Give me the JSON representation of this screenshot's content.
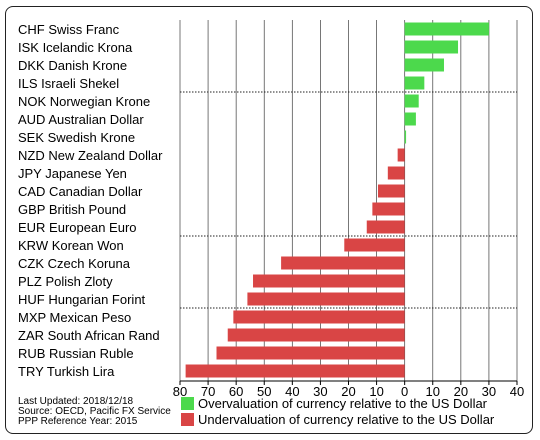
{
  "chart_data": {
    "type": "bar",
    "orientation": "horizontal",
    "categories": [
      "CHF Swiss Franc",
      "ISK Icelandic Krona",
      "DKK Danish Krone",
      "ILS Israeli Shekel",
      "NOK Norwegian Krone",
      "AUD Australian Dollar",
      "SEK Swedish Krone",
      "NZD New Zealand Dollar",
      "JPY Japanese Yen",
      "CAD Canadian Dollar",
      "GBP British Pound",
      "EUR European Euro",
      "KRW Korean Won",
      "CZK Czech Koruna",
      "PLZ Polish Zloty",
      "HUF Hungarian Forint",
      "MXP Mexican Peso",
      "ZAR South African Rand",
      "RUB Russian Ruble",
      "TRY Turkish Lira"
    ],
    "values": [
      30,
      19,
      14,
      7,
      5,
      4,
      0.5,
      -2.5,
      -6,
      -9.5,
      -11.5,
      -13.5,
      -21.5,
      -44,
      -54,
      -56,
      -61,
      -63,
      -67,
      -78
    ],
    "xlim": [
      -80,
      40
    ],
    "xticks": [
      -80,
      -70,
      -60,
      -50,
      -40,
      -30,
      -20,
      -10,
      0,
      10,
      20,
      30,
      40
    ],
    "xtick_labels": [
      "80",
      "70",
      "60",
      "50",
      "40",
      "30",
      "20",
      "10",
      "0",
      "10",
      "20",
      "30",
      "40"
    ],
    "grid": true,
    "group_separators_after": [
      3,
      11,
      15
    ],
    "colors": {
      "positive": "#4cd94c",
      "negative": "#d94545"
    },
    "legend": {
      "placement": "bottom-right",
      "items": [
        {
          "label": "Overvaluation of currency relative to the US Dollar",
          "color": "#4cd94c"
        },
        {
          "label": "Undervaluation of currency relative to the US Dollar",
          "color": "#d94545"
        }
      ]
    }
  },
  "footnotes": {
    "updated": "Last Updated: 2018/12/18",
    "source": "Source: OECD, Pacific FX Service",
    "reference": "PPP Reference Year: 2015"
  }
}
